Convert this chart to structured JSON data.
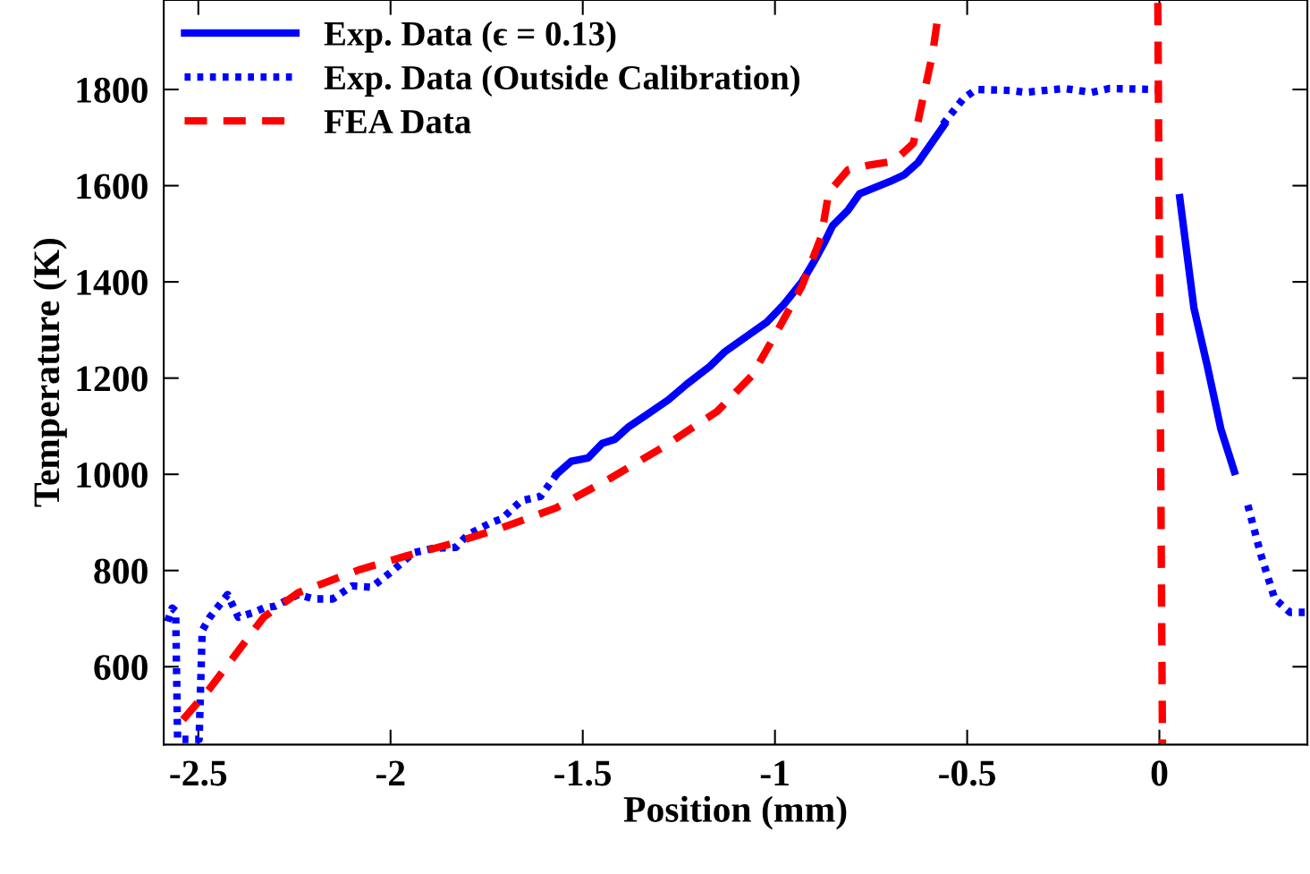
{
  "chart_data": {
    "type": "line",
    "xlabel": "Position (mm)",
    "ylabel": "Temperature (K)",
    "xlim": [
      -2.59,
      0.385
    ],
    "ylim": [
      438,
      1986
    ],
    "xticks": [
      -2.5,
      -2,
      -1.5,
      -1,
      -0.5,
      0
    ],
    "yticks": [
      600,
      800,
      1000,
      1200,
      1400,
      1600,
      1800
    ],
    "grid": false,
    "legend": "top left",
    "marker": "none",
    "series": [
      {
        "name": "Exp. Data (ϵ = 0.13)",
        "color": "#0000ff",
        "line_style": "solid",
        "x": [
          -1.567,
          -1.53,
          -1.486,
          -1.45,
          -1.416,
          -1.38,
          -1.335,
          -1.277,
          -1.23,
          -1.17,
          -1.13,
          -1.07,
          -1.02,
          -0.976,
          -0.93,
          -0.895,
          -0.87,
          -0.85,
          -0.81,
          -0.78,
          -0.7,
          -0.663,
          -0.628,
          -0.56,
          -0.3,
          0.053,
          0.09,
          0.125,
          0.16,
          0.195
        ],
        "values": [
          1001,
          1027,
          1034,
          1064,
          1073,
          1099,
          1123,
          1155,
          1187,
          1224,
          1255,
          1289,
          1317,
          1354,
          1400,
          1447,
          1484,
          1517,
          1549,
          1583,
          1609,
          1623,
          1648,
          1726,
          null,
          1575,
          1345,
          1224,
          1094,
          1006
        ]
      },
      {
        "name": "Exp. Data (Outside Calibration)",
        "color": "#0000ff",
        "line_style": "dotted",
        "x": [
          -2.58,
          -2.568,
          -2.559,
          -2.554,
          -2.498,
          -2.49,
          -2.47,
          -2.424,
          -2.396,
          -2.356,
          -2.33,
          -2.3,
          -2.24,
          -2.2,
          -2.15,
          -2.1,
          -2.05,
          -2.0,
          -1.94,
          -1.89,
          -1.83,
          -1.8,
          -1.74,
          -1.71,
          -1.66,
          -1.61,
          -1.567,
          -1.0,
          -0.563,
          -0.51,
          -0.477,
          -0.385,
          -0.35,
          -0.246,
          -0.176,
          -0.13,
          -0.007,
          0.1,
          0.23,
          0.264,
          0.3,
          0.34,
          0.385
        ],
        "values": [
          694,
          722,
          716,
          449,
          449,
          675,
          703,
          750,
          703,
          713,
          722,
          726,
          750,
          741,
          741,
          768,
          765,
          796,
          837,
          846,
          848,
          874,
          899,
          908,
          945,
          954,
          1001,
          null,
          1728,
          1781,
          1800,
          1798,
          1794,
          1802,
          1794,
          1802,
          1800,
          null,
          936,
          833,
          741,
          713,
          713
        ]
      },
      {
        "name": "FEA Data",
        "color": "#ff0000",
        "line_style": "dashed",
        "x": [
          -2.54,
          -2.47,
          -2.33,
          -2.24,
          -2.08,
          -1.96,
          -1.84,
          -1.71,
          -1.57,
          -1.43,
          -1.29,
          -1.15,
          -1.06,
          -1.0,
          -0.93,
          -0.88,
          -0.86,
          -0.81,
          -0.76,
          -0.69,
          -0.64,
          -0.62,
          -0.59,
          -0.575,
          -0.3,
          -0.004,
          0.008
        ],
        "values": [
          490,
          555,
          703,
          754,
          802,
          830,
          856,
          889,
          930,
          991,
          1057,
          1131,
          1205,
          1289,
          1391,
          1493,
          1586,
          1633,
          1642,
          1651,
          1688,
          1763,
          1874,
          1958,
          null,
          1980,
          440
        ]
      }
    ]
  }
}
